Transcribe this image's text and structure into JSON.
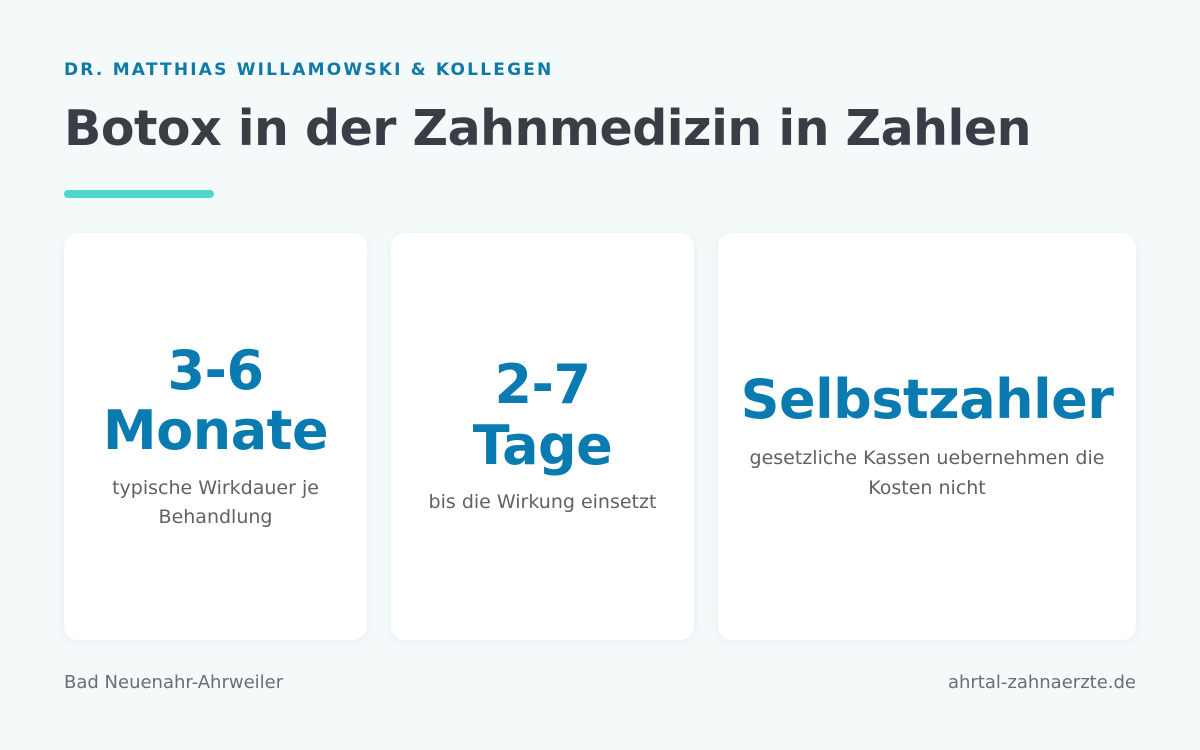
{
  "header": {
    "eyebrow": "DR. MATTHIAS WILLAMOWSKI & KOLLEGEN",
    "title": "Botox in der Zahnmedizin in Zahlen"
  },
  "colors": {
    "accent": "#0a7bb0",
    "underline": "#4fd6cf",
    "background": "#f4f9fa"
  },
  "cards": [
    {
      "value_line1": "3-6",
      "value_line2": "Monate",
      "description": "typische Wirkdauer je Behandlung"
    },
    {
      "value_line1": "2-7",
      "value_line2": "Tage",
      "description": "bis die Wirkung einsetzt"
    },
    {
      "value_line1": "Selbstzahler",
      "description": "gesetzliche Kassen uebernehmen die Kosten nicht"
    }
  ],
  "footer": {
    "location": "Bad Neuenahr-Ahrweiler",
    "website": "ahrtal-zahnaerzte.de"
  }
}
